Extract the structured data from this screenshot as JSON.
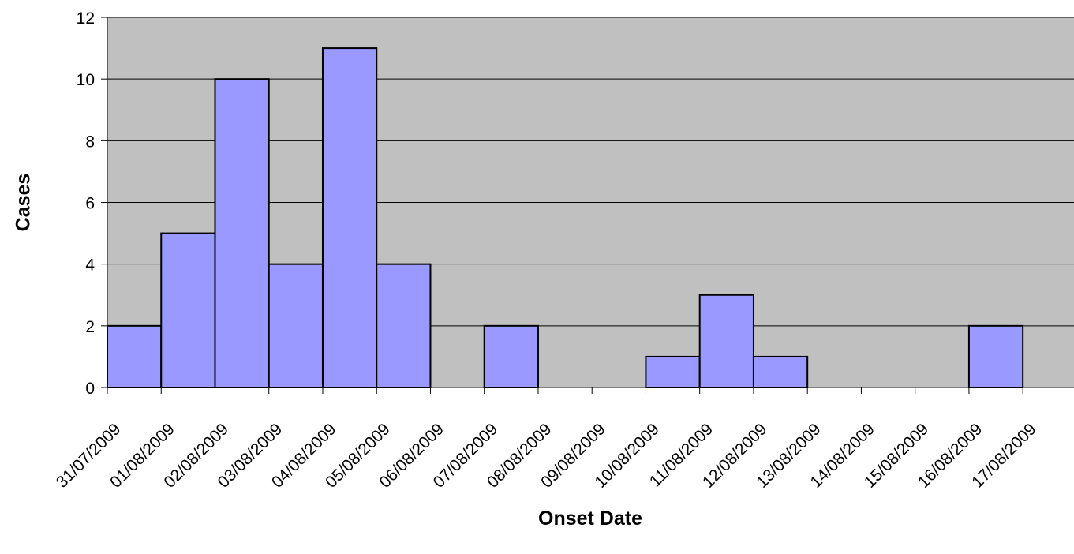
{
  "chart_data": {
    "type": "bar",
    "title": "",
    "xlabel": "Onset Date",
    "ylabel": "Cases",
    "ylim": [
      0,
      12
    ],
    "yticks": [
      0,
      2,
      4,
      6,
      8,
      10,
      12
    ],
    "categories": [
      "31/07/2009",
      "01/08/2009",
      "02/08/2009",
      "03/08/2009",
      "04/08/2009",
      "05/08/2009",
      "06/08/2009",
      "07/08/2009",
      "08/08/2009",
      "09/08/2009",
      "10/08/2009",
      "11/08/2009",
      "12/08/2009",
      "13/08/2009",
      "14/08/2009",
      "15/08/2009",
      "16/08/2009",
      "17/08/2009"
    ],
    "values": [
      2,
      5,
      10,
      4,
      11,
      4,
      0,
      2,
      0,
      0,
      1,
      3,
      1,
      0,
      0,
      0,
      2,
      0
    ],
    "grid": true,
    "colors": {
      "plot_bg": "#c0c0c0",
      "bar_fill": "#9999ff",
      "bar_stroke": "#000000"
    }
  }
}
